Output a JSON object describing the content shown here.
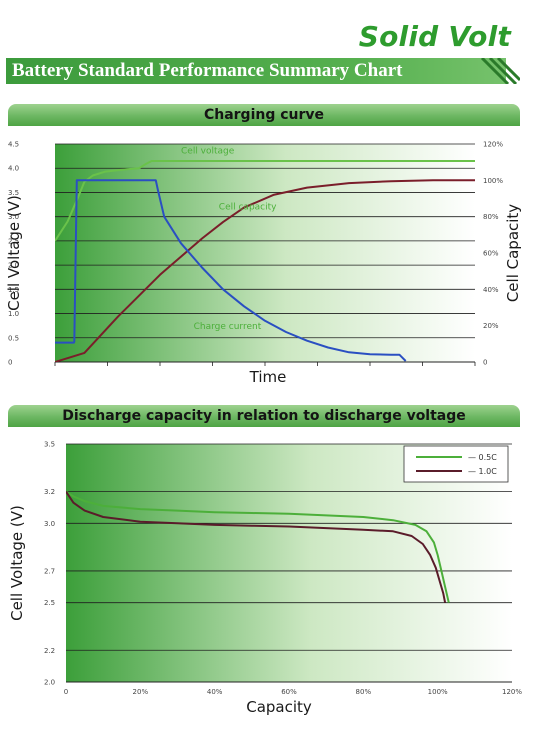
{
  "brand": "Solid Volt",
  "header": {
    "title": "Battery Standard Performance Summary Chart"
  },
  "colors": {
    "brand": "#2e9c2e",
    "header_green": "#3c9b3c",
    "voltage_line": "#6ac24a",
    "capacity_line": "#7a1e2a",
    "current_line": "#2a4fc2",
    "series_05c": "#4caf3a",
    "series_10c": "#5a1c2a"
  },
  "chart_data": [
    {
      "type": "line",
      "title": "Charging curve",
      "xlabel": "Time",
      "ylabel": "Cell Voltage (V)",
      "y2label": "Cell Capacity",
      "xlim": [
        0,
        100
      ],
      "ylim": [
        0,
        4.5
      ],
      "y2lim": [
        0,
        120
      ],
      "grid": true,
      "yticks": [
        "0",
        "0.5",
        "1.0",
        "1.5",
        "2.0",
        "2.5",
        "3.0",
        "3.5",
        "4.0",
        "4.5"
      ],
      "y2ticks": [
        "0",
        "20%",
        "40%",
        "60%",
        "80%",
        "100%",
        "120%"
      ],
      "annotations": [
        {
          "text": "Cell voltage",
          "x": 30,
          "y": 4.3
        },
        {
          "text": "Cell capacity",
          "x": 39,
          "y": 3.15
        },
        {
          "text": "Charge current",
          "x": 33,
          "y": 0.68
        }
      ],
      "series": [
        {
          "name": "Cell voltage",
          "axis": "left",
          "color": "#6ac24a",
          "x": [
            0,
            3,
            5.5,
            7,
            9,
            12,
            16,
            20,
            21.5,
            23,
            100
          ],
          "y": [
            2.5,
            2.9,
            3.4,
            3.72,
            3.85,
            3.93,
            3.97,
            4.0,
            4.08,
            4.15,
            4.15
          ]
        },
        {
          "name": "Cell capacity",
          "axis": "right",
          "color": "#7a1e2a",
          "x": [
            0,
            7,
            15,
            25,
            35,
            40,
            45,
            52,
            60,
            70,
            80,
            90,
            100
          ],
          "y": [
            0,
            5,
            25,
            48,
            68,
            77,
            85,
            92,
            96,
            98.5,
            99.5,
            100,
            100
          ]
        },
        {
          "name": "Charge current",
          "axis": "left",
          "color": "#2a4fc2",
          "x": [
            0,
            4.5,
            4.6,
            5.2,
            24,
            24.5,
            26,
            30,
            35,
            40,
            45,
            50,
            55,
            60,
            65,
            70,
            75,
            80,
            82,
            82.6,
            83.5
          ],
          "y": [
            0.4,
            0.4,
            0.42,
            3.75,
            3.75,
            3.55,
            3.0,
            2.45,
            1.95,
            1.5,
            1.15,
            0.85,
            0.62,
            0.44,
            0.3,
            0.2,
            0.16,
            0.15,
            0.15,
            0.1,
            0.02
          ]
        }
      ]
    },
    {
      "type": "line",
      "title": "Discharge capacity in relation to discharge voltage",
      "xlabel": "Capacity",
      "ylabel": "Cell Voltage (V)",
      "xlim": [
        0,
        120
      ],
      "ylim": [
        2.0,
        3.5
      ],
      "grid": true,
      "legend": "top-right",
      "xticks": [
        "0",
        "20%",
        "40%",
        "60%",
        "80%",
        "100%",
        "120%"
      ],
      "yticks": [
        "2.0",
        "2.2",
        "2.5",
        "2.7",
        "3.0",
        "3.2",
        "3.5"
      ],
      "series": [
        {
          "name": "0.5C",
          "color": "#4caf3a",
          "x": [
            0,
            2,
            5,
            10,
            20,
            30,
            40,
            50,
            60,
            70,
            80,
            88,
            94,
            97,
            99,
            100,
            101,
            102,
            103
          ],
          "y": [
            3.2,
            3.17,
            3.14,
            3.11,
            3.09,
            3.08,
            3.07,
            3.065,
            3.06,
            3.05,
            3.04,
            3.02,
            2.99,
            2.95,
            2.88,
            2.8,
            2.7,
            2.6,
            2.5
          ]
        },
        {
          "name": "1.0C",
          "color": "#5a1c2a",
          "x": [
            0,
            2,
            5,
            10,
            20,
            30,
            40,
            50,
            60,
            70,
            80,
            88,
            93,
            96,
            98,
            99.5,
            100.5,
            101.5,
            102
          ],
          "y": [
            3.2,
            3.13,
            3.08,
            3.04,
            3.01,
            3.0,
            2.99,
            2.985,
            2.98,
            2.97,
            2.96,
            2.95,
            2.92,
            2.87,
            2.8,
            2.72,
            2.64,
            2.56,
            2.5
          ]
        }
      ]
    }
  ]
}
